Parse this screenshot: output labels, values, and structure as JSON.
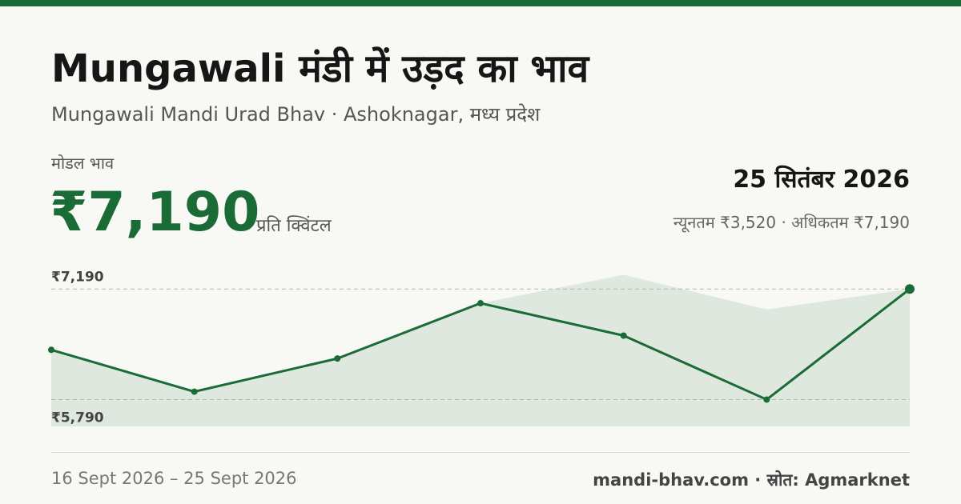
{
  "header": {
    "title": "Mungawali मंडी में उड़द का भाव",
    "subtitle": "Mungawali Mandi Urad Bhav · Ashoknagar, मध्य प्रदेश"
  },
  "summary": {
    "label": "मोडल भाव",
    "price": "₹7,190",
    "unit": "प्रति क्विंटल",
    "date": "25 सितंबर 2026",
    "range": "न्यूनतम ₹3,520 · अधिकतम ₹7,190"
  },
  "chart_data": {
    "type": "line",
    "categories": [
      null,
      null,
      null,
      null,
      null,
      null,
      null
    ],
    "series": [
      {
        "type": "area",
        "color": "#dfe8df",
        "values": [
          6420,
          5890,
          6310,
          7010,
          7370,
          6930,
          7190
        ]
      },
      {
        "type": "line",
        "color": "#1a6b35",
        "values": [
          6420,
          5890,
          6310,
          7010,
          6600,
          5790,
          7190
        ]
      }
    ],
    "ylim": [
      5450,
      7375
    ],
    "yticks": [
      {
        "value": 7190,
        "label": "₹7,190"
      },
      {
        "value": 5790,
        "label": "₹5,790"
      }
    ],
    "grid": true
  },
  "footer": {
    "date_range": "16 Sept 2026 – 25 Sept 2026",
    "source": "mandi-bhav.com · स्रोत: Agmarknet"
  }
}
